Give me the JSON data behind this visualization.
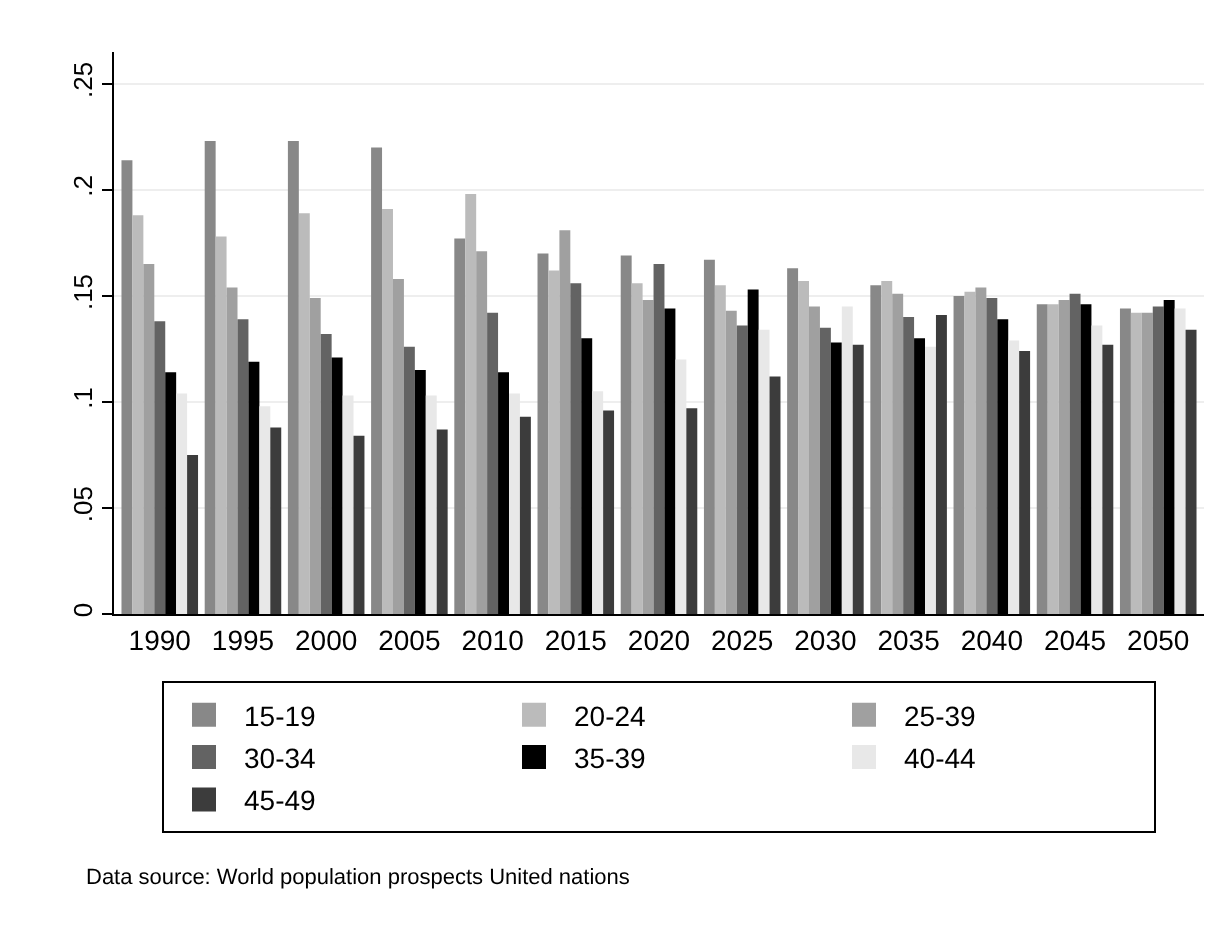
{
  "chart_data": {
    "type": "bar",
    "categories": [
      "1990",
      "1995",
      "2000",
      "2005",
      "2010",
      "2015",
      "2020",
      "2025",
      "2030",
      "2035",
      "2040",
      "2045",
      "2050"
    ],
    "series": [
      {
        "name": "15-19",
        "color": "#888888",
        "values": [
          0.214,
          0.223,
          0.223,
          0.22,
          0.177,
          0.17,
          0.169,
          0.167,
          0.163,
          0.155,
          0.15,
          0.146,
          0.144
        ]
      },
      {
        "name": "20-24",
        "color": "#bbbbbb",
        "values": [
          0.188,
          0.178,
          0.189,
          0.191,
          0.198,
          0.162,
          0.156,
          0.155,
          0.157,
          0.157,
          0.152,
          0.146,
          0.142
        ]
      },
      {
        "name": "25-39",
        "color": "#a0a0a0",
        "values": [
          0.165,
          0.154,
          0.149,
          0.158,
          0.171,
          0.181,
          0.148,
          0.143,
          0.145,
          0.151,
          0.154,
          0.148,
          0.142
        ]
      },
      {
        "name": "30-34",
        "color": "#636363",
        "values": [
          0.138,
          0.139,
          0.132,
          0.126,
          0.142,
          0.156,
          0.165,
          0.136,
          0.135,
          0.14,
          0.149,
          0.151,
          0.145
        ]
      },
      {
        "name": "35-39",
        "color": "#000000",
        "values": [
          0.114,
          0.119,
          0.121,
          0.115,
          0.114,
          0.13,
          0.144,
          0.153,
          0.128,
          0.13,
          0.139,
          0.146,
          0.148
        ]
      },
      {
        "name": "40-44",
        "color": "#e8e8e8",
        "values": [
          0.104,
          0.098,
          0.103,
          0.103,
          0.104,
          0.105,
          0.12,
          0.134,
          0.145,
          0.126,
          0.129,
          0.136,
          0.144
        ]
      },
      {
        "name": "45-49",
        "color": "#3c3c3c",
        "values": [
          0.075,
          0.088,
          0.084,
          0.087,
          0.093,
          0.096,
          0.097,
          0.112,
          0.127,
          0.141,
          0.124,
          0.127,
          0.134
        ]
      }
    ],
    "ylim": [
      0,
      0.265
    ],
    "yticks": [
      {
        "value": 0,
        "label": "0"
      },
      {
        "value": 0.05,
        "label": ".05"
      },
      {
        "value": 0.1,
        "label": ".1"
      },
      {
        "value": 0.15,
        "label": ".15"
      },
      {
        "value": 0.2,
        "label": ".2"
      },
      {
        "value": 0.25,
        "label": ".25"
      }
    ],
    "grid": "y",
    "legend": "bottom",
    "annotations": [
      "Data source: World population prospects United nations"
    ]
  }
}
